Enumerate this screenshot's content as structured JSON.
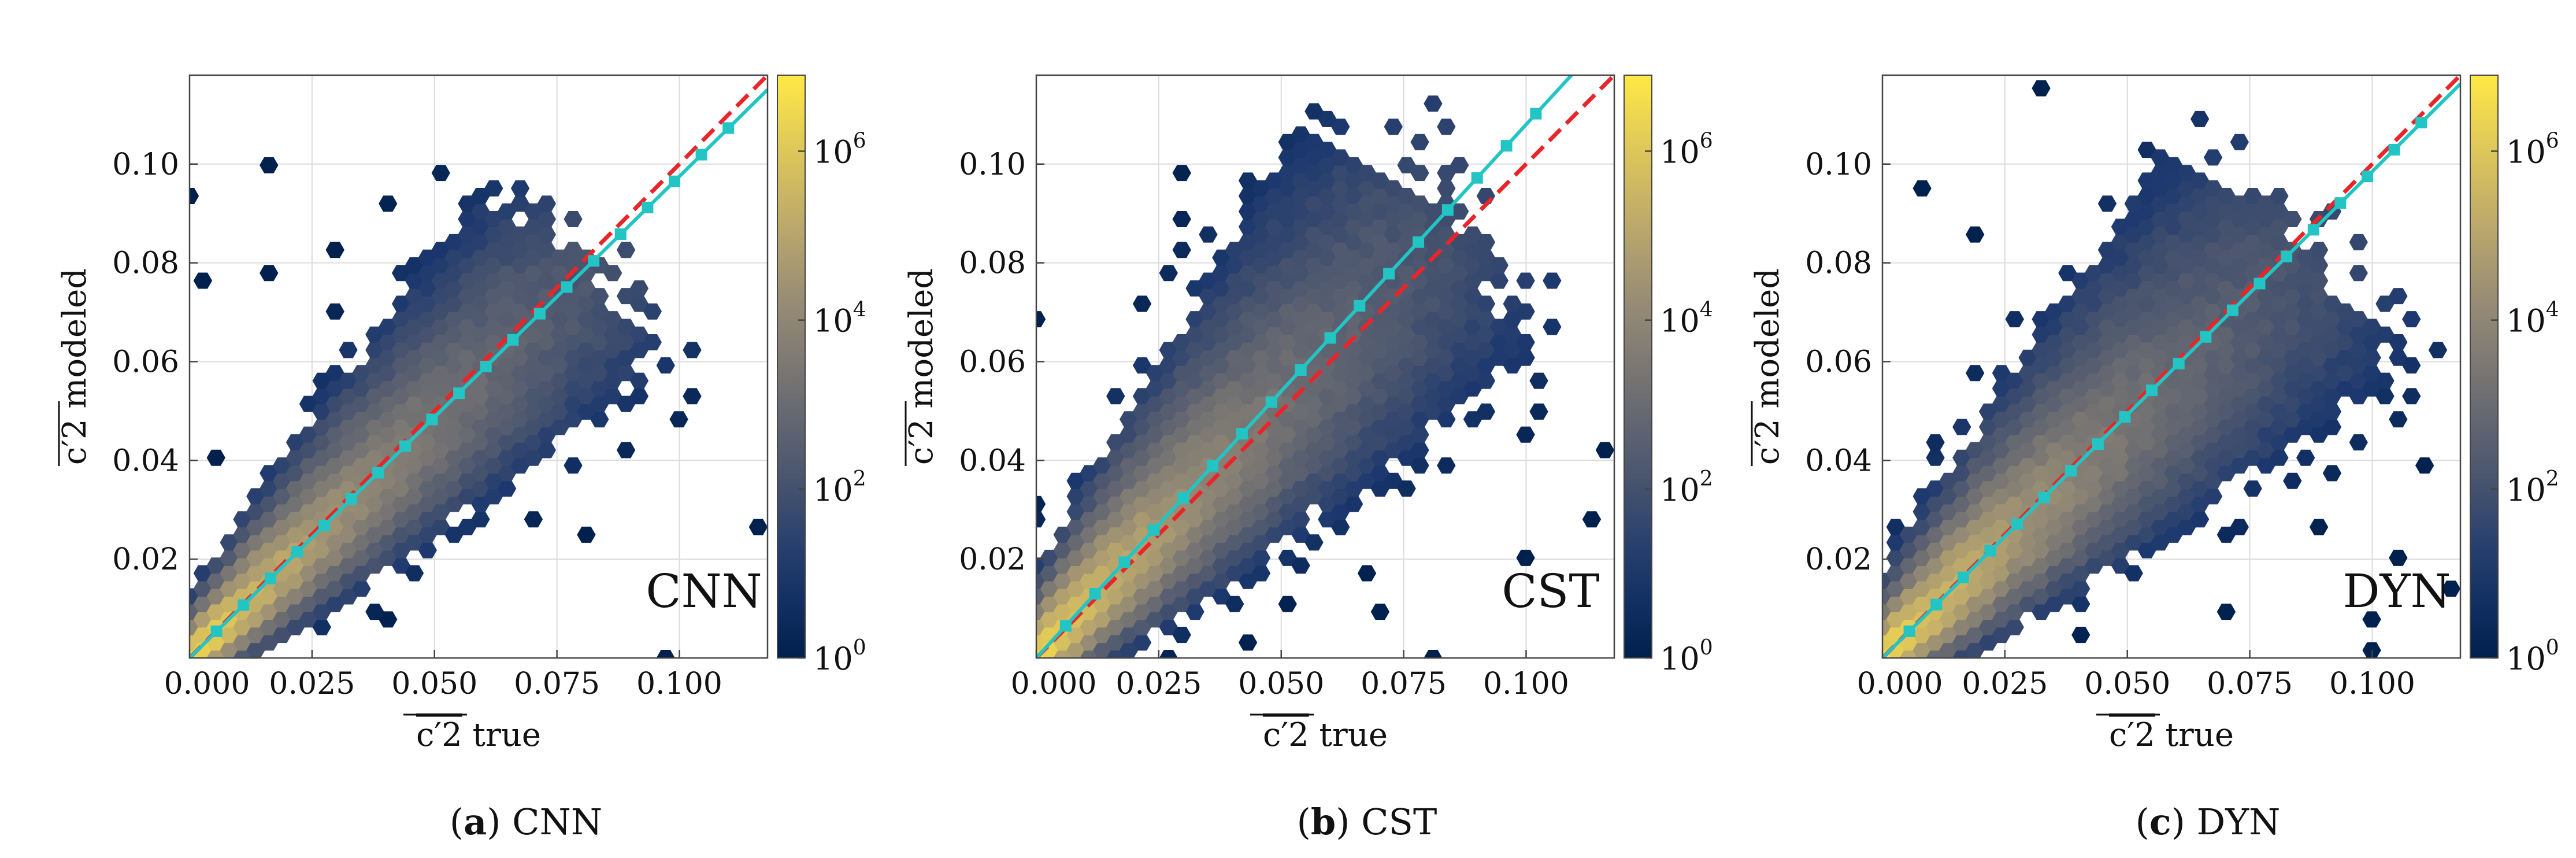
{
  "chart_data": [
    {
      "type": "hexbin",
      "panel_letter": "a",
      "caption": "CNN",
      "model_label": "CNN",
      "xlabel_sym": "c′2",
      "xlabel_rest": "true",
      "ylabel_sym": "c′2",
      "ylabel_rest": "modeled",
      "xlim": [
        0.0,
        0.118
      ],
      "ylim": [
        0.0,
        0.118
      ],
      "xticks": [
        "0.000",
        "0.025",
        "0.050",
        "0.075",
        "0.100"
      ],
      "xtick_values": [
        0.0,
        0.025,
        0.05,
        0.075,
        0.1
      ],
      "yticks": [
        "0.02",
        "0.04",
        "0.06",
        "0.08",
        "0.10"
      ],
      "ytick_values": [
        0.02,
        0.04,
        0.06,
        0.08,
        0.1
      ],
      "identity_line": {
        "color": "#e8262a",
        "style": "dashed",
        "x": [
          0,
          0.118
        ],
        "y": [
          0,
          0.118
        ]
      },
      "fit_line": {
        "color": "#22c4c4",
        "slope": 0.975,
        "x": [
          0.0055,
          0.011,
          0.0165,
          0.022,
          0.0275,
          0.033,
          0.0385,
          0.044,
          0.0495,
          0.055,
          0.0605,
          0.066,
          0.0715,
          0.077,
          0.0825,
          0.088,
          0.0935,
          0.099,
          0.1045,
          0.11
        ],
        "y": [
          0.0054,
          0.0107,
          0.0161,
          0.0215,
          0.0268,
          0.0322,
          0.0375,
          0.0429,
          0.0483,
          0.0536,
          0.059,
          0.0644,
          0.0697,
          0.0751,
          0.0804,
          0.0858,
          0.0912,
          0.0965,
          0.1019,
          0.1073
        ]
      },
      "density_spread": 0.0085,
      "density_tail": 0.075,
      "colorbar": {
        "scale": "log",
        "ticks": [
          {
            "base": "10",
            "exp": "0"
          },
          {
            "base": "10",
            "exp": "2"
          },
          {
            "base": "10",
            "exp": "4"
          },
          {
            "base": "10",
            "exp": "6"
          }
        ],
        "tick_log_values": [
          0,
          2,
          4,
          6
        ],
        "range_log": [
          0,
          6.9
        ]
      }
    },
    {
      "type": "hexbin",
      "panel_letter": "b",
      "caption": "CST",
      "model_label": "CST",
      "xlabel_sym": "c′2",
      "xlabel_rest": "true",
      "ylabel_sym": "c′2",
      "ylabel_rest": "modeled",
      "xlim": [
        0.0,
        0.118
      ],
      "ylim": [
        0.0,
        0.118
      ],
      "xticks": [
        "0.000",
        "0.025",
        "0.050",
        "0.075",
        "0.100"
      ],
      "xtick_values": [
        0.0,
        0.025,
        0.05,
        0.075,
        0.1
      ],
      "yticks": [
        "0.02",
        "0.04",
        "0.06",
        "0.08",
        "0.10"
      ],
      "ytick_values": [
        0.02,
        0.04,
        0.06,
        0.08,
        0.1
      ],
      "identity_line": {
        "color": "#e8262a",
        "style": "dashed",
        "x": [
          0,
          0.118
        ],
        "y": [
          0,
          0.118
        ]
      },
      "fit_line": {
        "color": "#22c4c4",
        "slope": 1.08,
        "x": [
          0.006,
          0.012,
          0.018,
          0.024,
          0.03,
          0.036,
          0.042,
          0.048,
          0.054,
          0.06,
          0.066,
          0.072,
          0.078,
          0.084,
          0.09,
          0.096,
          0.102
        ],
        "y": [
          0.0065,
          0.013,
          0.0194,
          0.0259,
          0.0324,
          0.0389,
          0.0454,
          0.0518,
          0.0583,
          0.0648,
          0.0713,
          0.0778,
          0.0842,
          0.0907,
          0.0972,
          0.1037,
          0.1102
        ]
      },
      "density_spread": 0.011,
      "density_tail": 0.08,
      "colorbar": {
        "scale": "log",
        "ticks": [
          {
            "base": "10",
            "exp": "0"
          },
          {
            "base": "10",
            "exp": "2"
          },
          {
            "base": "10",
            "exp": "4"
          },
          {
            "base": "10",
            "exp": "6"
          }
        ],
        "tick_log_values": [
          0,
          2,
          4,
          6
        ],
        "range_log": [
          0,
          6.9
        ]
      }
    },
    {
      "type": "hexbin",
      "panel_letter": "c",
      "caption": "DYN",
      "model_label": "DYN",
      "xlabel_sym": "c′2",
      "xlabel_rest": "true",
      "ylabel_sym": "c′2",
      "ylabel_rest": "modeled",
      "xlim": [
        0.0,
        0.118
      ],
      "ylim": [
        0.0,
        0.118
      ],
      "xticks": [
        "0.000",
        "0.025",
        "0.050",
        "0.075",
        "0.100"
      ],
      "xtick_values": [
        0.0,
        0.025,
        0.05,
        0.075,
        0.1
      ],
      "yticks": [
        "0.02",
        "0.04",
        "0.06",
        "0.08",
        "0.10"
      ],
      "ytick_values": [
        0.02,
        0.04,
        0.06,
        0.08,
        0.1
      ],
      "identity_line": {
        "color": "#e8262a",
        "style": "dashed",
        "x": [
          0,
          0.118
        ],
        "y": [
          0,
          0.118
        ]
      },
      "fit_line": {
        "color": "#22c4c4",
        "slope": 0.985,
        "x": [
          0.0055,
          0.011,
          0.0165,
          0.022,
          0.0275,
          0.033,
          0.0385,
          0.044,
          0.0495,
          0.055,
          0.0605,
          0.066,
          0.0715,
          0.077,
          0.0825,
          0.088,
          0.0935,
          0.099,
          0.1045,
          0.11
        ],
        "y": [
          0.0054,
          0.0108,
          0.0163,
          0.0217,
          0.0271,
          0.0325,
          0.0379,
          0.0433,
          0.0488,
          0.0542,
          0.0596,
          0.065,
          0.0704,
          0.0758,
          0.0813,
          0.0867,
          0.0921,
          0.0975,
          0.1029,
          0.1084
        ]
      },
      "density_spread": 0.0105,
      "density_tail": 0.08,
      "colorbar": {
        "scale": "log",
        "ticks": [
          {
            "base": "10",
            "exp": "0"
          },
          {
            "base": "10",
            "exp": "2"
          },
          {
            "base": "10",
            "exp": "4"
          },
          {
            "base": "10",
            "exp": "6"
          }
        ],
        "tick_log_values": [
          0,
          2,
          4,
          6
        ],
        "range_log": [
          0,
          6.9
        ]
      }
    }
  ]
}
